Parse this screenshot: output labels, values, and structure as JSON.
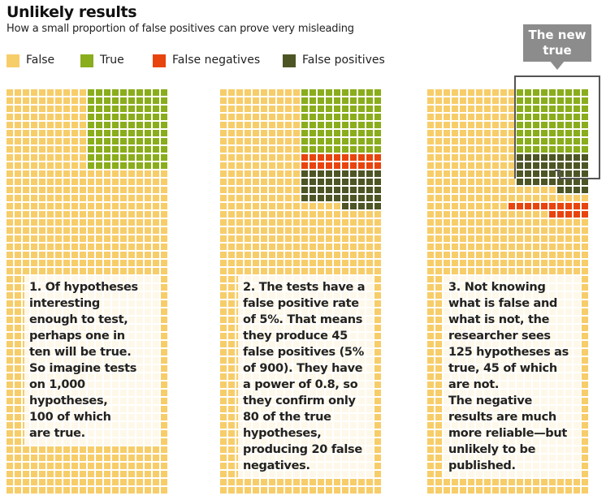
{
  "title": "Unlikely results",
  "subtitle": "How a small proportion of false positives can prove very misleading",
  "colors": {
    "false": "#f7cd6a",
    "true": "#8aad1c",
    "false_negatives": "#e8440d",
    "false_positives": "#4d5525",
    "grid_line": "#fbefd2",
    "callout": "#8c8c8c"
  },
  "legend": [
    {
      "key": "false",
      "label": "False",
      "color": "#f7cd6a"
    },
    {
      "key": "true",
      "label": "True",
      "color": "#8aad1c"
    },
    {
      "key": "false_negatives",
      "label": "False negatives",
      "color": "#e8440d"
    },
    {
      "key": "false_positives",
      "label": "False positives",
      "color": "#4d5525"
    }
  ],
  "panels": [
    {
      "id": "panel-1",
      "total_hypotheses": 1000,
      "counts": {
        "true": 100,
        "false": 900
      },
      "text_lines": [
        "1. Of hypotheses",
        "interesting",
        "enough to test,",
        "perhaps one in",
        "ten will be true.",
        "So imagine tests",
        "on 1,000",
        "hypotheses,",
        "100 of which",
        "are true."
      ]
    },
    {
      "id": "panel-2",
      "total_hypotheses": 1000,
      "counts": {
        "true": 80,
        "false_negatives": 20,
        "false_positives": 45,
        "false": 855
      },
      "text_lines": [
        "2. The tests have a",
        "false positive rate",
        "of 5%. That means",
        "they produce 45",
        "false positives (5%",
        "of 900). They have",
        "a power of 0.8, so",
        "they confirm only",
        "80 of the true",
        "hypotheses,",
        "producing 20 false",
        "negatives."
      ]
    },
    {
      "id": "panel-3",
      "total_hypotheses": 1000,
      "counts": {
        "true": 80,
        "false_positives": 45,
        "false_negatives": 20,
        "false": 855
      },
      "callout": [
        "The new",
        "true"
      ],
      "text_lines": [
        "3. Not knowing",
        "what is false and",
        "what is not, the",
        "researcher sees",
        "125 hypotheses as",
        "true, 45 of which",
        "are not.",
        "The negative",
        "results are much",
        "more reliable—but",
        "unlikely to be",
        "published."
      ]
    }
  ]
}
